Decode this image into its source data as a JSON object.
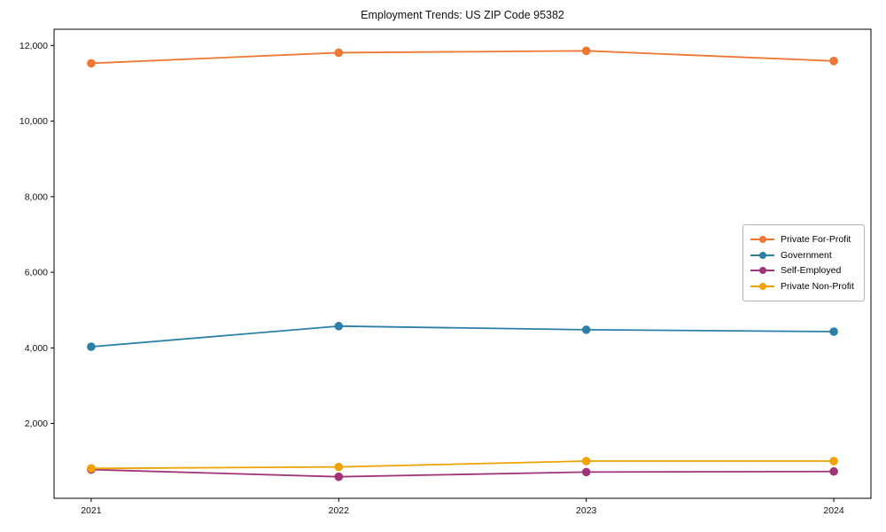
{
  "title": "Employment Trends: US ZIP Code 95382",
  "chart_data": {
    "type": "line",
    "title": "Employment Trends: US ZIP Code 95382",
    "xlabel": "",
    "ylabel": "",
    "x": [
      2021,
      2022,
      2023,
      2024
    ],
    "x_tick_labels": [
      "2021",
      "2022",
      "2023",
      "2024"
    ],
    "yticks": [
      2000,
      4000,
      6000,
      8000,
      10000,
      12000
    ],
    "ytick_labels": [
      "2,000",
      "4,000",
      "6,000",
      "8,000",
      "10,000",
      "12,000"
    ],
    "xlim": [
      2020.85,
      2024.15
    ],
    "ylim": [
      20,
      12430
    ],
    "grid": false,
    "legend_position": "center right",
    "marker": "circle",
    "series": [
      {
        "name": "Private For-Profit",
        "color": "#EE7733",
        "values": [
          11530,
          11810,
          11860,
          11590
        ]
      },
      {
        "name": "Government",
        "color": "#2C7FA6",
        "values": [
          4030,
          4575,
          4480,
          4430
        ]
      },
      {
        "name": "Self-Employed",
        "color": "#A13478",
        "values": [
          780,
          590,
          715,
          730
        ]
      },
      {
        "name": "Private Non-Profit",
        "color": "#F0A202",
        "values": [
          810,
          850,
          1005,
          1005
        ]
      }
    ]
  }
}
